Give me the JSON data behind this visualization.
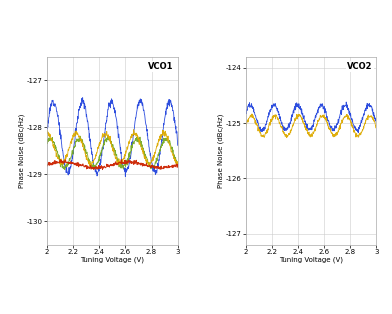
{
  "vco1": {
    "title": "VCO1",
    "xlabel": "Tuning Voltage (V)",
    "ylabel": "Phase Noise (dBc/Hz)",
    "xlim": [
      2,
      3
    ],
    "ylim": [
      -130.5,
      -126.5
    ],
    "yticks": [
      -130,
      -129,
      -128,
      -127
    ],
    "xticks": [
      2,
      2.2,
      2.4,
      2.6,
      2.8,
      3
    ],
    "lines": [
      {
        "color": "#2244dd",
        "base": -128.2,
        "amp": 0.75,
        "freq": 4.5,
        "phase": 0.2,
        "noise": 0.04,
        "lw": 0.6
      },
      {
        "color": "#77aa22",
        "base": -128.55,
        "amp": 0.3,
        "freq": 4.5,
        "phase": 0.9,
        "noise": 0.03,
        "lw": 0.6
      },
      {
        "color": "#ddaa00",
        "base": -128.45,
        "amp": 0.32,
        "freq": 4.5,
        "phase": 1.5,
        "noise": 0.03,
        "lw": 0.6
      },
      {
        "color": "#cc2200",
        "base": -128.8,
        "amp": 0.06,
        "freq": 2.0,
        "phase": 0.0,
        "noise": 0.02,
        "lw": 0.6
      }
    ]
  },
  "vco2": {
    "title": "VCO2",
    "xlabel": "Tuning Voltage (V)",
    "ylabel": "Phase Noise (dBc/Hz)",
    "xlim": [
      2,
      3
    ],
    "ylim": [
      -127.2,
      -123.8
    ],
    "yticks": [
      -127,
      -126,
      -125,
      -124
    ],
    "xticks": [
      2,
      2.2,
      2.4,
      2.6,
      2.8,
      3
    ],
    "lines": [
      {
        "color": "#2244dd",
        "base": -124.9,
        "amp": 0.22,
        "freq": 5.5,
        "phase": 0.4,
        "noise": 0.025,
        "lw": 0.6
      },
      {
        "color": "#ddaa00",
        "base": -125.05,
        "amp": 0.18,
        "freq": 5.5,
        "phase": 0.1,
        "noise": 0.02,
        "lw": 0.6
      }
    ]
  },
  "bg_color": "#ffffff",
  "grid_color": "#cccccc",
  "title_fontsize": 6,
  "label_fontsize": 5,
  "tick_fontsize": 5
}
